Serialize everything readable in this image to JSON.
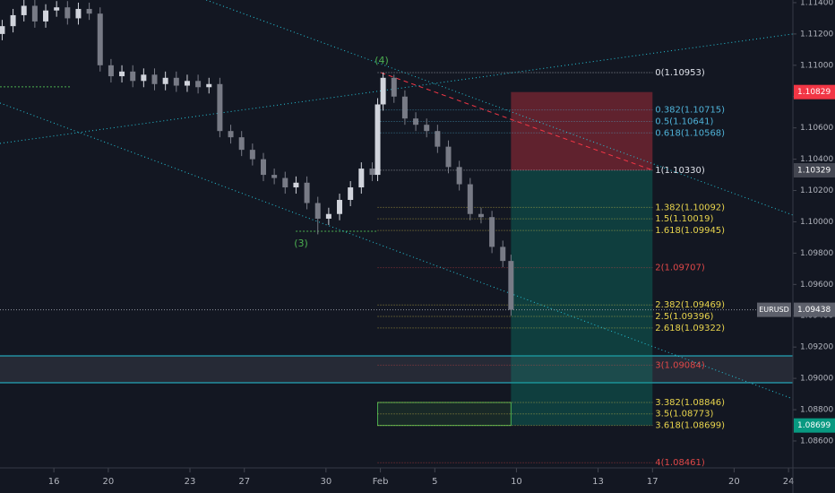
{
  "chart_data": {
    "type": "candlestick",
    "x": [
      -1.9,
      -1.5,
      -1.1,
      -0.7,
      -0.3,
      0.1,
      0.5,
      0.9,
      1.3,
      1.7,
      2.1,
      2.5,
      2.9,
      3.3,
      3.7,
      4.1,
      4.5,
      4.9,
      5.3,
      5.7,
      6.1,
      6.5,
      6.9,
      7.3,
      7.7,
      8.1,
      8.5,
      8.9,
      9.3,
      9.7,
      10.1,
      10.5,
      10.9,
      11.3,
      11.7,
      11.9,
      12.1,
      12.5,
      12.9,
      13.3,
      13.7,
      14.1,
      14.5,
      14.9,
      15.3,
      15.7,
      16.1,
      16.5,
      16.8
    ],
    "open": [
      1.112,
      1.1125,
      1.1132,
      1.1138,
      1.1128,
      1.1135,
      1.1137,
      1.113,
      1.1136,
      1.1133,
      1.11,
      1.1093,
      1.1096,
      1.109,
      1.1094,
      1.1088,
      1.1092,
      1.1087,
      1.109,
      1.1086,
      1.1088,
      1.1058,
      1.1054,
      1.1046,
      1.104,
      1.103,
      1.1028,
      1.1022,
      1.1025,
      1.1012,
      1.1002,
      1.1005,
      1.1014,
      1.1022,
      1.1034,
      1.103,
      1.1075,
      1.1092,
      1.108,
      1.1066,
      1.1062,
      1.1058,
      1.1048,
      1.1035,
      1.1024,
      1.1005,
      1.1003,
      1.0984,
      1.0975
    ],
    "high": [
      1.1129,
      1.1136,
      1.1142,
      1.1142,
      1.1139,
      1.1141,
      1.1141,
      1.114,
      1.114,
      1.1137,
      1.1104,
      1.11,
      1.11,
      1.1098,
      1.1098,
      1.1096,
      1.1096,
      1.1094,
      1.1094,
      1.1092,
      1.1092,
      1.1062,
      1.1058,
      1.105,
      1.1044,
      1.1034,
      1.1032,
      1.1029,
      1.1029,
      1.1016,
      1.1009,
      1.1018,
      1.1026,
      1.1038,
      1.1038,
      1.1079,
      1.10953,
      1.1094,
      1.1084,
      1.107,
      1.1066,
      1.1062,
      1.1052,
      1.1039,
      1.1028,
      1.1009,
      1.1007,
      1.0988,
      1.0979
    ],
    "low": [
      1.1116,
      1.1121,
      1.1128,
      1.1124,
      1.1124,
      1.1131,
      1.1126,
      1.1126,
      1.1129,
      1.1096,
      1.1089,
      1.1089,
      1.1086,
      1.1086,
      1.1084,
      1.1084,
      1.1083,
      1.1083,
      1.1082,
      1.1082,
      1.1054,
      1.105,
      1.1042,
      1.1036,
      1.1026,
      1.1024,
      1.1018,
      1.1018,
      1.1008,
      1.0992,
      1.0998,
      1.1001,
      1.101,
      1.1018,
      1.1026,
      1.1026,
      1.1071,
      1.1076,
      1.1062,
      1.1058,
      1.1054,
      1.1044,
      1.1031,
      1.102,
      1.1001,
      1.0999,
      1.098,
      1.0971,
      1.094
    ],
    "close": [
      1.1125,
      1.1132,
      1.1138,
      1.1128,
      1.1135,
      1.1137,
      1.113,
      1.1136,
      1.1133,
      1.11,
      1.1093,
      1.1096,
      1.109,
      1.1094,
      1.1088,
      1.1092,
      1.1087,
      1.109,
      1.1086,
      1.1088,
      1.1058,
      1.1054,
      1.1046,
      1.104,
      1.103,
      1.1028,
      1.1022,
      1.1025,
      1.1012,
      1.1002,
      1.1005,
      1.1014,
      1.1022,
      1.1034,
      1.103,
      1.1075,
      1.1092,
      1.108,
      1.1066,
      1.1062,
      1.1058,
      1.1048,
      1.1035,
      1.1024,
      1.1005,
      1.1003,
      1.0984,
      1.0975,
      1.09438
    ],
    "up_color": "#d1d4dc",
    "down_color": "#787b86",
    "xlim": [
      -1.98,
      27.16
    ],
    "xticks": [
      {
        "value": 0,
        "label": "16"
      },
      {
        "value": 2,
        "label": "20"
      },
      {
        "value": 5,
        "label": "23"
      },
      {
        "value": 7,
        "label": "27"
      },
      {
        "value": 10,
        "label": "30"
      },
      {
        "value": 12,
        "label": "Feb"
      },
      {
        "value": 14,
        "label": "5"
      },
      {
        "value": 17,
        "label": "10"
      },
      {
        "value": 20,
        "label": "13"
      },
      {
        "value": 22,
        "label": "17"
      },
      {
        "value": 25,
        "label": "20"
      },
      {
        "value": 27,
        "label": "24"
      }
    ],
    "ylim": [
      1.08428,
      1.11417
    ],
    "yticks": [
      {
        "value": 1.114,
        "label": "1.11400"
      },
      {
        "value": 1.112,
        "label": "1.11200"
      },
      {
        "value": 1.11,
        "label": "1.11000"
      },
      {
        "value": 1.108,
        "label": "1.10800"
      },
      {
        "value": 1.106,
        "label": "1.10600"
      },
      {
        "value": 1.104,
        "label": "1.10400"
      },
      {
        "value": 1.102,
        "label": "1.10200"
      },
      {
        "value": 1.1,
        "label": "1.10000"
      },
      {
        "value": 1.098,
        "label": "1.09800"
      },
      {
        "value": 1.096,
        "label": "1.09600"
      },
      {
        "value": 1.094,
        "label": "1.09400"
      },
      {
        "value": 1.092,
        "label": "1.09200"
      },
      {
        "value": 1.09,
        "label": "1.09000"
      },
      {
        "value": 1.088,
        "label": "1.08800"
      },
      {
        "value": 1.086,
        "label": "1.08600"
      }
    ],
    "fib_x": [
      11.9,
      22
    ],
    "fib_levels": [
      {
        "value": 1.10953,
        "label": "0(1.10953)",
        "color": "#e0e3eb"
      },
      {
        "value": 1.10715,
        "label": "0.382(1.10715)",
        "color": "#4fb3d9"
      },
      {
        "value": 1.10641,
        "label": "0.5(1.10641)",
        "color": "#4fb3d9"
      },
      {
        "value": 1.10568,
        "label": "0.618(1.10568)",
        "color": "#4fb3d9"
      },
      {
        "value": 1.1033,
        "label": "1(1.10330)",
        "color": "#e0e3eb"
      },
      {
        "value": 1.10092,
        "label": "1.382(1.10092)",
        "color": "#e8d44d"
      },
      {
        "value": 1.10019,
        "label": "1.5(1.10019)",
        "color": "#e8d44d"
      },
      {
        "value": 1.09945,
        "label": "1.618(1.09945)",
        "color": "#e8d44d"
      },
      {
        "value": 1.09707,
        "label": "2(1.09707)",
        "color": "#e04848"
      },
      {
        "value": 1.09469,
        "label": "2.382(1.09469)",
        "color": "#e8d44d"
      },
      {
        "value": 1.09396,
        "label": "2.5(1.09396)",
        "color": "#e8d44d"
      },
      {
        "value": 1.09322,
        "label": "2.618(1.09322)",
        "color": "#e8d44d"
      },
      {
        "value": 1.09084,
        "label": "3(1.09084)",
        "color": "#e04848"
      },
      {
        "value": 1.08846,
        "label": "3.382(1.08846)",
        "color": "#e8d44d"
      },
      {
        "value": 1.08773,
        "label": "3.5(1.08773)",
        "color": "#e8d44d"
      },
      {
        "value": 1.08699,
        "label": "3.618(1.08699)",
        "color": "#e8d44d"
      },
      {
        "value": 1.08461,
        "label": "4(1.08461)",
        "color": "#e04848"
      }
    ],
    "trendlines": [
      {
        "x": [
          5.6,
          27.16
        ],
        "y": [
          1.11417,
          1.10043
        ],
        "color": "#26c6da",
        "style": "dotted"
      },
      {
        "x": [
          -1.98,
          27.16
        ],
        "y": [
          1.10759,
          1.08869
        ],
        "color": "#26c6da",
        "style": "dotted"
      },
      {
        "x": [
          -1.98,
          27.16
        ],
        "y": [
          1.10501,
          1.112
        ],
        "color": "#26c6da",
        "style": "dotted"
      },
      {
        "x": [
          12.02,
          22
        ],
        "y": [
          1.10953,
          1.1033
        ],
        "color": "#f23645",
        "style": "dashed"
      }
    ],
    "levels": [
      {
        "value": 1.10862,
        "x": [
          -1.98,
          0.59
        ],
        "color": "#4caf50"
      },
      {
        "value": 1.0994,
        "x": [
          8.89,
          11.85
        ],
        "color": "#4caf50"
      }
    ],
    "zone": {
      "values": [
        1.08972,
        1.09144
      ],
      "color": "#26c6da"
    },
    "position": {
      "x": [
        16.8,
        22
      ],
      "stop": 1.10829,
      "entry": 1.10329,
      "target": 1.08699
    },
    "target_box": {
      "x": [
        11.9,
        16.8
      ],
      "values": [
        1.08699,
        1.08846
      ],
      "color": "#4caf50"
    },
    "price_tags": [
      {
        "value": 1.10829,
        "label": "1.10829",
        "color": "#f23645"
      },
      {
        "value": 1.10329,
        "label": "1.10329",
        "color": "#434651"
      },
      {
        "value": 1.09438,
        "label": "1.09438",
        "color": "#5d606b"
      },
      {
        "value": 1.08699,
        "label": "1.08699",
        "color": "#089981"
      }
    ],
    "symbol": "EURUSD",
    "wave_labels": [
      "(3)",
      "(4)"
    ]
  }
}
